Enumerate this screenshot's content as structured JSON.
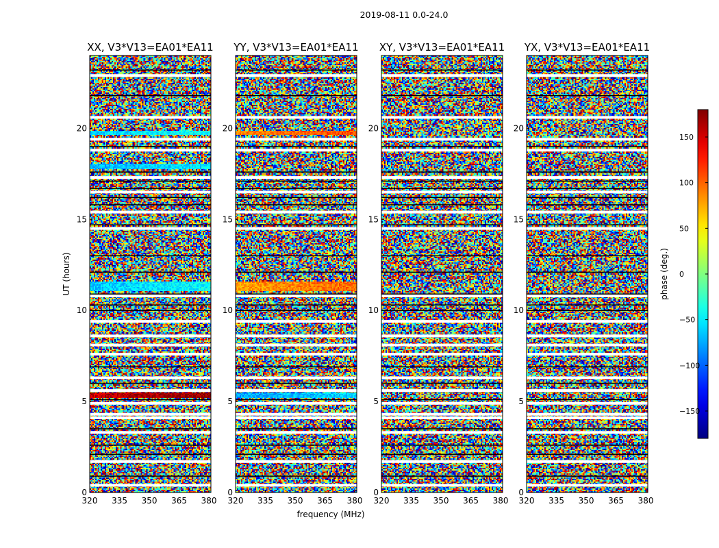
{
  "figure_title": "2019-08-11 0.0-24.0",
  "chart_data": [
    {
      "type": "heatmap",
      "title": "XX, V3*V13=EA01*EA11",
      "xlabel": "frequency (MHz)",
      "ylabel": "UT (hours)",
      "xlim": [
        320,
        381
      ],
      "ylim": [
        0,
        24
      ],
      "xticks": [
        320,
        335,
        350,
        365,
        380
      ],
      "yticks": [
        0,
        5,
        10,
        15,
        20
      ],
      "color_range": [
        -180,
        180
      ]
    },
    {
      "type": "heatmap",
      "title": "YY, V3*V13=EA01*EA11",
      "xlabel": "frequency (MHz)",
      "ylabel": "UT (hours)",
      "xlim": [
        320,
        381
      ],
      "ylim": [
        0,
        24
      ],
      "xticks": [
        320,
        335,
        350,
        365,
        380
      ],
      "yticks": [
        0,
        5,
        10,
        15,
        20
      ],
      "color_range": [
        -180,
        180
      ]
    },
    {
      "type": "heatmap",
      "title": "XY, V3*V13=EA01*EA11",
      "xlabel": "frequency (MHz)",
      "ylabel": "UT (hours)",
      "xlim": [
        320,
        381
      ],
      "ylim": [
        0,
        24
      ],
      "xticks": [
        320,
        335,
        350,
        365,
        380
      ],
      "yticks": [
        0,
        5,
        10,
        15,
        20
      ],
      "color_range": [
        -180,
        180
      ]
    },
    {
      "type": "heatmap",
      "title": "YX, V3*V13=EA01*EA11",
      "xlabel": "frequency (MHz)",
      "ylabel": "UT (hours)",
      "xlim": [
        320,
        381
      ],
      "ylim": [
        0,
        24
      ],
      "xticks": [
        320,
        335,
        350,
        365,
        380
      ],
      "yticks": [
        0,
        5,
        10,
        15,
        20
      ],
      "color_range": [
        -180,
        180
      ]
    }
  ],
  "shared_xlabel": "frequency (MHz)",
  "shared_ylabel": "UT (hours)",
  "colorbar": {
    "label": "phase (deg.)",
    "range": [
      -180,
      180
    ],
    "ticks": [
      -150,
      -100,
      -50,
      0,
      50,
      100,
      150
    ],
    "tick_labels": [
      "−150",
      "−100",
      "−50",
      "0",
      "50",
      "100",
      "150"
    ],
    "colormap": "jet"
  }
}
